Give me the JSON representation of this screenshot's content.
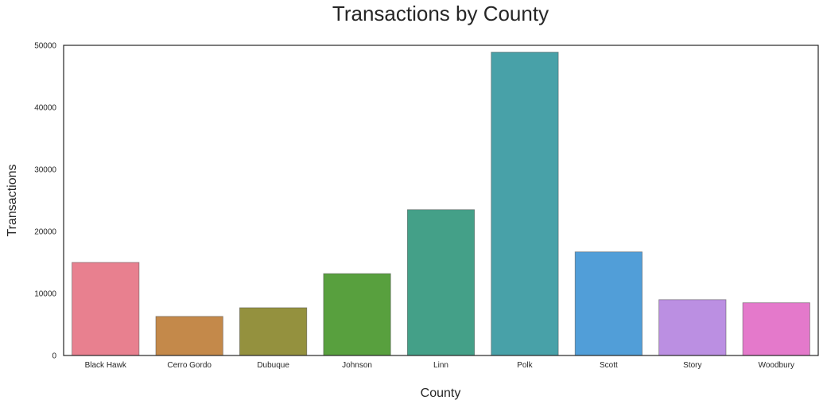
{
  "chart_data": {
    "type": "bar",
    "title": "Transactions by County",
    "xlabel": "County",
    "ylabel": "Transactions",
    "categories": [
      "Black Hawk",
      "Cerro Gordo",
      "Dubuque",
      "Johnson",
      "Linn",
      "Polk",
      "Scott",
      "Story",
      "Woodbury"
    ],
    "values": [
      15000,
      6300,
      7700,
      13200,
      23500,
      48900,
      16700,
      9000,
      8500
    ],
    "colors": [
      "#e8808f",
      "#c4894a",
      "#94913e",
      "#58a03e",
      "#44a088",
      "#48a1a8",
      "#519ed8",
      "#bb8fe2",
      "#e479cb"
    ],
    "ylim": [
      0,
      50000
    ],
    "yticks": [
      0,
      10000,
      20000,
      30000,
      40000,
      50000
    ],
    "grid": false,
    "legend": "none"
  }
}
